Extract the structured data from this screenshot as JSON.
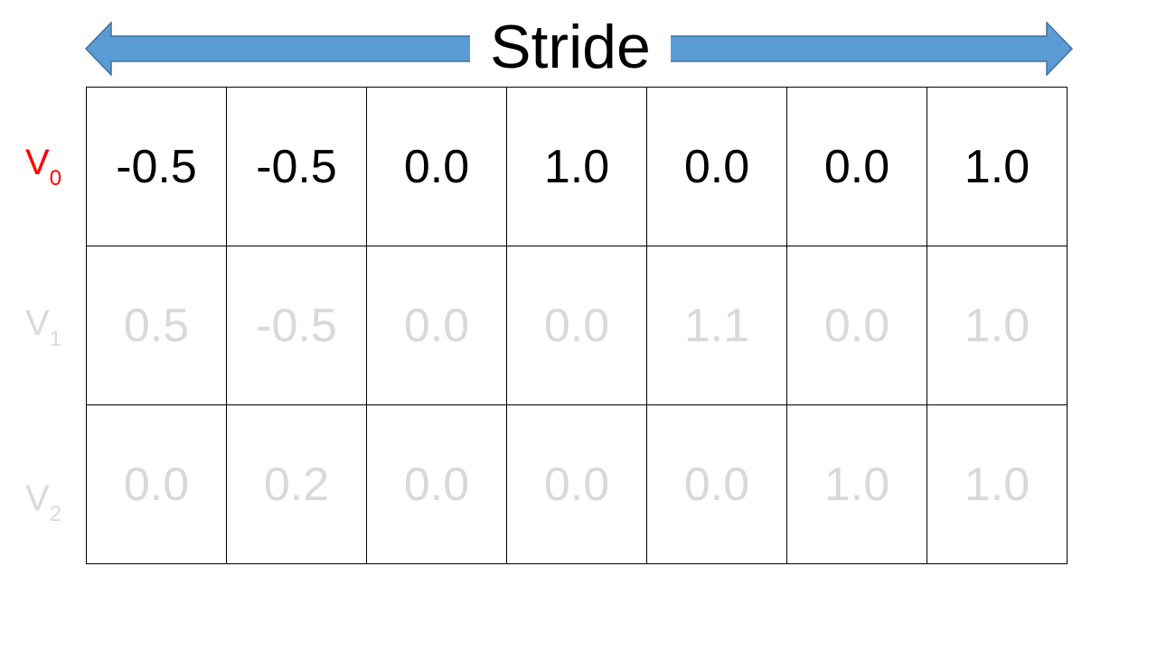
{
  "title": "Stride",
  "colors": {
    "arrow_fill": "#5b9bd5",
    "arrow_stroke": "#41719c",
    "active": "#000000",
    "active_label": "#ff0000",
    "inactive": "#d9d9d9"
  },
  "rows": [
    {
      "label": "V",
      "subscript": "0",
      "active": true,
      "cells": [
        "-0.5",
        "-0.5",
        "0.0",
        "1.0",
        "0.0",
        "0.0",
        "1.0"
      ]
    },
    {
      "label": "V",
      "subscript": "1",
      "active": false,
      "cells": [
        "0.5",
        "-0.5",
        "0.0",
        "0.0",
        "1.1",
        "0.0",
        "1.0"
      ]
    },
    {
      "label": "V",
      "subscript": "2",
      "active": false,
      "cells": [
        "0.0",
        "0.2",
        "0.0",
        "0.0",
        "0.0",
        "1.0",
        "1.0"
      ]
    }
  ]
}
